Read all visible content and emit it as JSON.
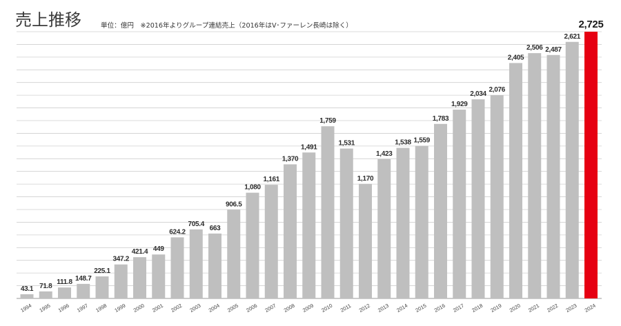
{
  "chart_data": {
    "type": "bar",
    "title": "売上推移",
    "subtitle": "単位：億円　※2016年よりグループ連結売上（2016年はV･ファーレン長崎は除く）",
    "categories": [
      "1994",
      "1995",
      "1996",
      "1997",
      "1998",
      "1999",
      "2000",
      "2001",
      "2002",
      "2003",
      "2004",
      "2005",
      "2006",
      "2007",
      "2008",
      "2009",
      "2010",
      "2011",
      "2012",
      "2013",
      "2014",
      "2015",
      "2016",
      "2017",
      "2018",
      "2019",
      "2020",
      "2021",
      "2022",
      "2023",
      "2024"
    ],
    "values": [
      43.1,
      71.8,
      111.8,
      148.7,
      225.1,
      347.2,
      421.4,
      449,
      624.2,
      705.4,
      663,
      906.5,
      1080,
      1161,
      1370,
      1491,
      1759,
      1531,
      1170,
      1423,
      1538,
      1559,
      1783,
      1929,
      2034,
      2076,
      2405,
      2506,
      2487,
      2621,
      2725
    ],
    "value_labels": [
      "43.1",
      "71.8",
      "111.8",
      "148.7",
      "225.1",
      "347.2",
      "421.4",
      "449",
      "624.2",
      "705.4",
      "663",
      "906.5",
      "1,080",
      "1,161",
      "1,370",
      "1,491",
      "1,759",
      "1,531",
      "1,170",
      "1,423",
      "1,538",
      "1,559",
      "1,783",
      "1,929",
      "2,034",
      "2,076",
      "2,405",
      "2,506",
      "2,487",
      "2,621",
      "2,725"
    ],
    "ylim": [
      0,
      2725
    ],
    "grid": true,
    "highlight_color": "#e60012",
    "bar_colors": [
      "#bfbfbf",
      "#bfbfbf",
      "#bfbfbf",
      "#bfbfbf",
      "#bfbfbf",
      "#bfbfbf",
      "#bfbfbf",
      "#bfbfbf",
      "#bfbfbf",
      "#bfbfbf",
      "#bfbfbf",
      "#bfbfbf",
      "#bfbfbf",
      "#bfbfbf",
      "#bfbfbf",
      "#bfbfbf",
      "#bfbfbf",
      "#bfbfbf",
      "#bfbfbf",
      "#bfbfbf",
      "#bfbfbf",
      "#bfbfbf",
      "#bfbfbf",
      "#bfbfbf",
      "#bfbfbf",
      "#bfbfbf",
      "#bfbfbf",
      "#bfbfbf",
      "#bfbfbf",
      "#bfbfbf",
      "#e60012"
    ]
  }
}
